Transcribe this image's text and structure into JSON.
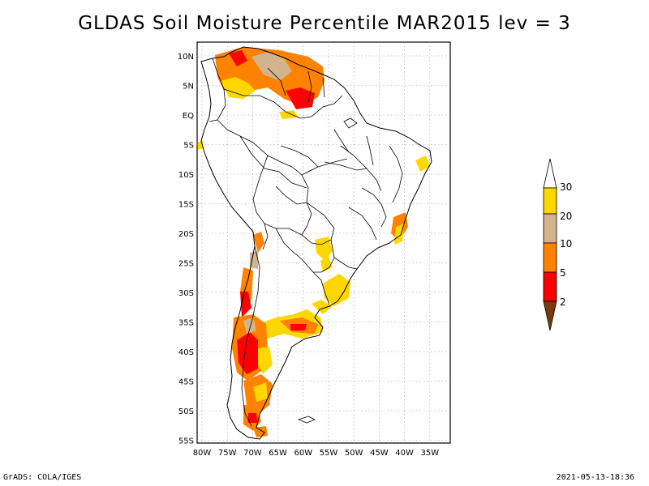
{
  "title": "GLDAS Soil Moisture Percentile MAR2015 lev = 3",
  "map": {
    "lon_labels": [
      "80W",
      "75W",
      "70W",
      "65W",
      "60W",
      "55W",
      "50W",
      "45W",
      "40W",
      "35W"
    ],
    "lat_labels": [
      "10N",
      "5N",
      "EQ",
      "5S",
      "10S",
      "15S",
      "20S",
      "25S",
      "30S",
      "35S",
      "40S",
      "45S",
      "50S",
      "55S"
    ]
  },
  "colorbar": {
    "levels": [
      "2",
      "5",
      "10",
      "20",
      "30"
    ],
    "colors": {
      "lt2": "#7a3a0e",
      "2_5": "#ff0000",
      "5_10": "#ff8200",
      "10_20": "#d2b48c",
      "20_30": "#ffd700",
      "gt30": "#ffffff"
    }
  },
  "footer": {
    "left": "GrADS: COLA/IGES",
    "right": "2021-05-13-18:36"
  }
}
